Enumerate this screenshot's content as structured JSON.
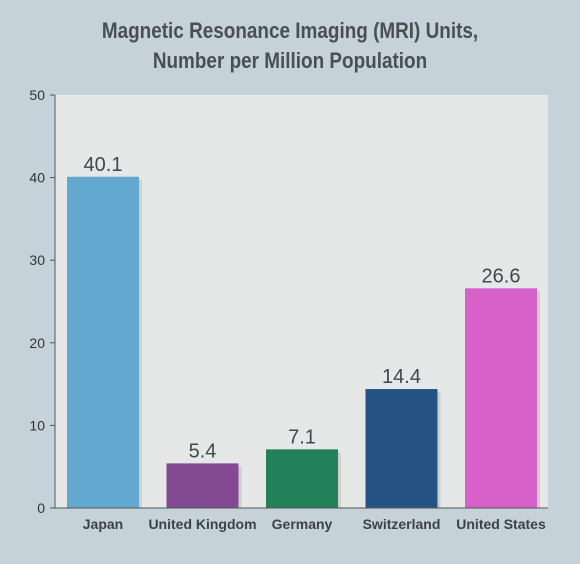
{
  "chart_data": {
    "type": "bar",
    "title": "Magnetic Resonance Imaging (MRI) Units,",
    "subtitle": "Number per Million Population",
    "xlabel": "",
    "ylabel": "",
    "ylim": [
      0,
      50
    ],
    "yticks": [
      0,
      10,
      20,
      30,
      40,
      50
    ],
    "categories": [
      "Japan",
      "United Kingdom",
      "Germany",
      "Switzerland",
      "United States"
    ],
    "values": [
      40.1,
      5.4,
      7.1,
      14.4,
      26.6
    ],
    "value_labels": [
      "40.1",
      "5.4",
      "7.1",
      "14.4",
      "26.6"
    ],
    "bar_colors": [
      "#62a8cf",
      "#834a93",
      "#238058",
      "#245384",
      "#d662c9"
    ],
    "plot_background": "#e6e7e7",
    "grid": false,
    "legend": "none"
  }
}
